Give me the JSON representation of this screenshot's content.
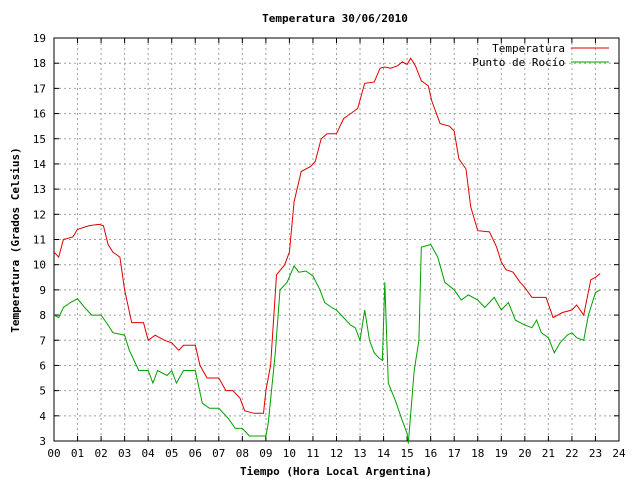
{
  "chart_data": {
    "type": "line",
    "title": "Temperatura 30/06/2010",
    "xlabel": "Tiempo (Hora Local Argentina)",
    "ylabel": "Temperatura (Grados Celsius)",
    "xlim": [
      0,
      24
    ],
    "ylim": [
      3,
      19
    ],
    "x_ticks": [
      "00",
      "01",
      "02",
      "03",
      "04",
      "05",
      "06",
      "07",
      "08",
      "09",
      "10",
      "11",
      "12",
      "13",
      "14",
      "15",
      "16",
      "17",
      "18",
      "19",
      "20",
      "21",
      "22",
      "23",
      "24"
    ],
    "y_ticks": [
      "3",
      "4",
      "5",
      "6",
      "7",
      "8",
      "9",
      "10",
      "11",
      "12",
      "13",
      "14",
      "15",
      "16",
      "17",
      "18",
      "19"
    ],
    "grid": true,
    "legend_position": "top-right",
    "series": [
      {
        "name": "Temperatura",
        "color": "#e00000",
        "points": [
          [
            0.0,
            10.5
          ],
          [
            0.2,
            10.3
          ],
          [
            0.4,
            11.0
          ],
          [
            0.8,
            11.1
          ],
          [
            1.0,
            11.4
          ],
          [
            1.5,
            11.55
          ],
          [
            1.9,
            11.6
          ],
          [
            2.1,
            11.55
          ],
          [
            2.3,
            10.8
          ],
          [
            2.5,
            10.5
          ],
          [
            2.8,
            10.3
          ],
          [
            3.0,
            9.0
          ],
          [
            3.3,
            7.7
          ],
          [
            3.8,
            7.7
          ],
          [
            4.0,
            7.0
          ],
          [
            4.3,
            7.2
          ],
          [
            4.7,
            7.0
          ],
          [
            5.0,
            6.9
          ],
          [
            5.3,
            6.6
          ],
          [
            5.5,
            6.8
          ],
          [
            6.0,
            6.8
          ],
          [
            6.2,
            6.0
          ],
          [
            6.5,
            5.5
          ],
          [
            7.0,
            5.5
          ],
          [
            7.3,
            5.0
          ],
          [
            7.6,
            5.0
          ],
          [
            7.9,
            4.7
          ],
          [
            8.1,
            4.2
          ],
          [
            8.5,
            4.1
          ],
          [
            8.9,
            4.1
          ],
          [
            9.0,
            5.0
          ],
          [
            9.2,
            6.0
          ],
          [
            9.45,
            9.6
          ],
          [
            9.8,
            10.0
          ],
          [
            10.0,
            10.5
          ],
          [
            10.2,
            12.5
          ],
          [
            10.5,
            13.7
          ],
          [
            10.9,
            13.9
          ],
          [
            11.1,
            14.1
          ],
          [
            11.35,
            15.0
          ],
          [
            11.6,
            15.2
          ],
          [
            12.0,
            15.2
          ],
          [
            12.3,
            15.8
          ],
          [
            12.6,
            16.0
          ],
          [
            12.9,
            16.2
          ],
          [
            13.2,
            17.2
          ],
          [
            13.6,
            17.25
          ],
          [
            13.85,
            17.8
          ],
          [
            14.05,
            17.85
          ],
          [
            14.3,
            17.8
          ],
          [
            14.6,
            17.9
          ],
          [
            14.8,
            18.05
          ],
          [
            15.0,
            17.95
          ],
          [
            15.15,
            18.2
          ],
          [
            15.35,
            17.9
          ],
          [
            15.6,
            17.3
          ],
          [
            15.9,
            17.1
          ],
          [
            16.05,
            16.5
          ],
          [
            16.4,
            15.6
          ],
          [
            16.8,
            15.5
          ],
          [
            17.0,
            15.3
          ],
          [
            17.2,
            14.2
          ],
          [
            17.5,
            13.8
          ],
          [
            17.7,
            12.3
          ],
          [
            18.0,
            11.35
          ],
          [
            18.5,
            11.3
          ],
          [
            18.8,
            10.7
          ],
          [
            19.0,
            10.1
          ],
          [
            19.2,
            9.8
          ],
          [
            19.5,
            9.7
          ],
          [
            19.8,
            9.3
          ],
          [
            20.0,
            9.1
          ],
          [
            20.3,
            8.7
          ],
          [
            20.9,
            8.7
          ],
          [
            21.2,
            7.9
          ],
          [
            21.6,
            8.1
          ],
          [
            22.0,
            8.2
          ],
          [
            22.2,
            8.4
          ],
          [
            22.5,
            8.0
          ],
          [
            22.8,
            9.4
          ],
          [
            23.0,
            9.5
          ],
          [
            23.2,
            9.65
          ]
        ]
      },
      {
        "name": "Punto de Rocío",
        "color": "#00a000",
        "points": [
          [
            0.0,
            8.0
          ],
          [
            0.2,
            7.9
          ],
          [
            0.4,
            8.3
          ],
          [
            0.7,
            8.5
          ],
          [
            1.0,
            8.65
          ],
          [
            1.3,
            8.3
          ],
          [
            1.6,
            8.0
          ],
          [
            2.0,
            8.0
          ],
          [
            2.3,
            7.6
          ],
          [
            2.5,
            7.3
          ],
          [
            3.0,
            7.2
          ],
          [
            3.2,
            6.6
          ],
          [
            3.6,
            5.8
          ],
          [
            4.0,
            5.8
          ],
          [
            4.2,
            5.3
          ],
          [
            4.4,
            5.8
          ],
          [
            4.8,
            5.6
          ],
          [
            5.0,
            5.8
          ],
          [
            5.2,
            5.3
          ],
          [
            5.5,
            5.8
          ],
          [
            6.0,
            5.8
          ],
          [
            6.3,
            4.5
          ],
          [
            6.6,
            4.3
          ],
          [
            7.0,
            4.3
          ],
          [
            7.4,
            3.9
          ],
          [
            7.7,
            3.5
          ],
          [
            8.0,
            3.5
          ],
          [
            8.3,
            3.2
          ],
          [
            8.7,
            3.2
          ],
          [
            9.0,
            3.2
          ],
          [
            9.1,
            3.7
          ],
          [
            9.4,
            6.5
          ],
          [
            9.6,
            9.0
          ],
          [
            9.9,
            9.3
          ],
          [
            10.2,
            9.95
          ],
          [
            10.4,
            9.7
          ],
          [
            10.7,
            9.75
          ],
          [
            11.0,
            9.55
          ],
          [
            11.3,
            9.0
          ],
          [
            11.5,
            8.5
          ],
          [
            11.8,
            8.3
          ],
          [
            12.0,
            8.2
          ],
          [
            12.3,
            7.9
          ],
          [
            12.6,
            7.6
          ],
          [
            12.8,
            7.5
          ],
          [
            13.0,
            7.0
          ],
          [
            13.2,
            8.2
          ],
          [
            13.4,
            7.0
          ],
          [
            13.6,
            6.5
          ],
          [
            13.8,
            6.3
          ],
          [
            13.95,
            6.2
          ],
          [
            14.05,
            9.3
          ],
          [
            14.2,
            5.3
          ],
          [
            14.5,
            4.6
          ],
          [
            14.8,
            3.8
          ],
          [
            15.0,
            3.3
          ],
          [
            15.05,
            2.9
          ],
          [
            15.3,
            5.8
          ],
          [
            15.5,
            7.0
          ],
          [
            15.6,
            10.7
          ],
          [
            16.0,
            10.8
          ],
          [
            16.3,
            10.3
          ],
          [
            16.6,
            9.3
          ],
          [
            17.0,
            9.0
          ],
          [
            17.3,
            8.6
          ],
          [
            17.6,
            8.8
          ],
          [
            18.0,
            8.6
          ],
          [
            18.3,
            8.3
          ],
          [
            18.7,
            8.7
          ],
          [
            19.0,
            8.2
          ],
          [
            19.3,
            8.5
          ],
          [
            19.6,
            7.8
          ],
          [
            20.0,
            7.6
          ],
          [
            20.3,
            7.5
          ],
          [
            20.5,
            7.8
          ],
          [
            20.7,
            7.3
          ],
          [
            21.0,
            7.1
          ],
          [
            21.25,
            6.5
          ],
          [
            21.5,
            6.9
          ],
          [
            21.8,
            7.2
          ],
          [
            22.0,
            7.3
          ],
          [
            22.2,
            7.1
          ],
          [
            22.5,
            7.0
          ],
          [
            22.7,
            8.0
          ],
          [
            23.0,
            8.9
          ],
          [
            23.2,
            9.0
          ]
        ]
      }
    ]
  }
}
